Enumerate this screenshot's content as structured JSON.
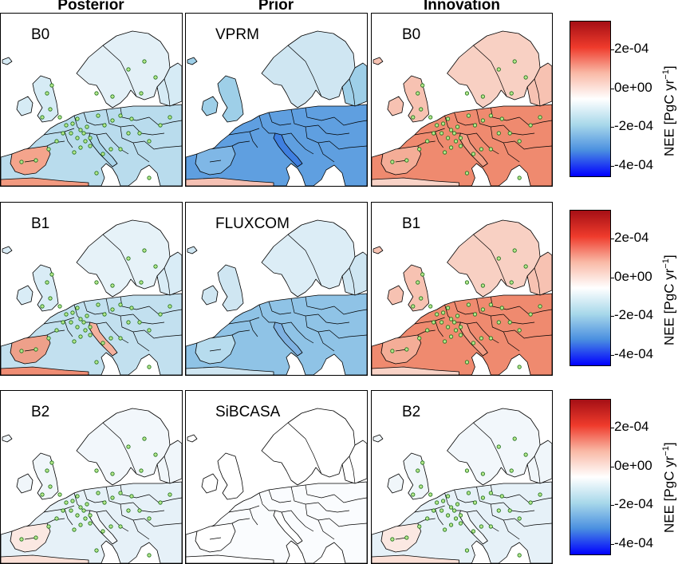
{
  "columns": [
    "Posterior",
    "Prior",
    "Innovation"
  ],
  "rows": [
    {
      "posterior_label": "B0",
      "prior_label": "VPRM",
      "innovation_label": "B0",
      "posterior_tone": "mixed-blue",
      "prior_tone": "strong-blue",
      "innovation_tone": "red"
    },
    {
      "posterior_label": "B1",
      "prior_label": "FLUXCOM",
      "innovation_label": "B1",
      "posterior_tone": "mixed-blue-red",
      "prior_tone": "blue",
      "innovation_tone": "red"
    },
    {
      "posterior_label": "B2",
      "prior_label": "SiBCASA",
      "innovation_label": "B2",
      "posterior_tone": "faint",
      "prior_tone": "white",
      "innovation_tone": "faint"
    }
  ],
  "colorbar": {
    "ticks": [
      "2e-04",
      "0e+00",
      "-2e-04",
      "-4e-04"
    ],
    "tick_values": [
      0.0002,
      0,
      -0.0002,
      -0.0004
    ],
    "range": [
      -0.00045,
      0.00035
    ],
    "unit_text": "NEE [PgC yr",
    "unit_exp": "−1",
    "unit_close": "]",
    "colors": [
      "#0000ff",
      "#4a8fe0",
      "#a8d8ea",
      "#ffffff",
      "#f9b9a6",
      "#ef3b2c",
      "#a50f15"
    ]
  },
  "map_style": {
    "land_blue": "#cfe6f2",
    "border_color": "#000000",
    "station_fill": "#b5e88a",
    "station_stroke": "#1a6b1a"
  }
}
